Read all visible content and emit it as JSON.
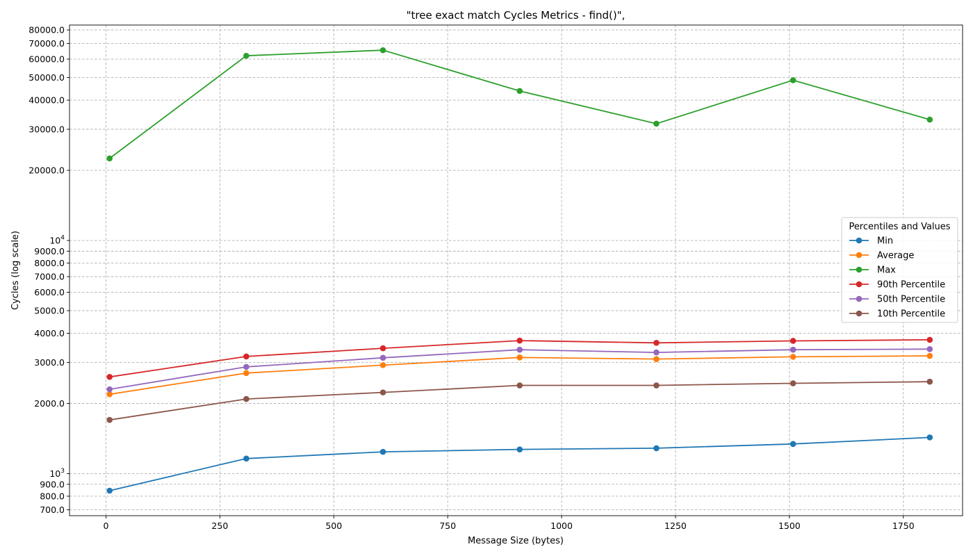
{
  "chart_data": {
    "type": "line",
    "title": "\"tree exact match Cycles Metrics - find()\",",
    "xlabel": "Message Size (bytes)",
    "ylabel": "Cycles (log scale)",
    "yscale": "log",
    "xlim": [
      -80,
      1880
    ],
    "ylim": [
      660,
      84000
    ],
    "grid": true,
    "legend_title": "Percentiles and Values",
    "legend_position": "center-right",
    "x_ticks": [
      0,
      250,
      500,
      750,
      1000,
      1250,
      1500,
      1750
    ],
    "y_ticks": [
      {
        "value": 700,
        "label": "700.0"
      },
      {
        "value": 800,
        "label": "800.0"
      },
      {
        "value": 900,
        "label": "900.0"
      },
      {
        "value": 1000,
        "label": "10",
        "exp": "3"
      },
      {
        "value": 2000,
        "label": "2000.0"
      },
      {
        "value": 3000,
        "label": "3000.0"
      },
      {
        "value": 4000,
        "label": "4000.0"
      },
      {
        "value": 5000,
        "label": "5000.0"
      },
      {
        "value": 6000,
        "label": "6000.0"
      },
      {
        "value": 7000,
        "label": "7000.0"
      },
      {
        "value": 8000,
        "label": "8000.0"
      },
      {
        "value": 9000,
        "label": "9000.0"
      },
      {
        "value": 10000,
        "label": "10",
        "exp": "4"
      },
      {
        "value": 20000,
        "label": "20000.0"
      },
      {
        "value": 30000,
        "label": "30000.0"
      },
      {
        "value": 40000,
        "label": "40000.0"
      },
      {
        "value": 50000,
        "label": "50000.0"
      },
      {
        "value": 60000,
        "label": "60000.0"
      },
      {
        "value": 70000,
        "label": "70000.0"
      },
      {
        "value": 80000,
        "label": "80000.0"
      }
    ],
    "x": [
      8,
      308,
      608,
      908,
      1208,
      1508,
      1808
    ],
    "series": [
      {
        "name": "Min",
        "color": "#1f77b4",
        "values": [
          845,
          1160,
          1240,
          1270,
          1285,
          1340,
          1430
        ]
      },
      {
        "name": "Average",
        "color": "#ff7f0e",
        "values": [
          2190,
          2700,
          2920,
          3150,
          3100,
          3170,
          3200
        ]
      },
      {
        "name": "Max",
        "color": "#2ca02c",
        "values": [
          22500,
          62000,
          65500,
          43800,
          31700,
          48700,
          33000
        ]
      },
      {
        "name": "90th Percentile",
        "color": "#d62728",
        "values": [
          2600,
          3180,
          3450,
          3720,
          3640,
          3710,
          3750
        ]
      },
      {
        "name": "50th Percentile",
        "color": "#9467bd",
        "values": [
          2300,
          2870,
          3140,
          3400,
          3310,
          3400,
          3420
        ]
      },
      {
        "name": "10th Percentile",
        "color": "#8c564b",
        "values": [
          1700,
          2090,
          2230,
          2390,
          2390,
          2440,
          2480
        ]
      }
    ]
  }
}
